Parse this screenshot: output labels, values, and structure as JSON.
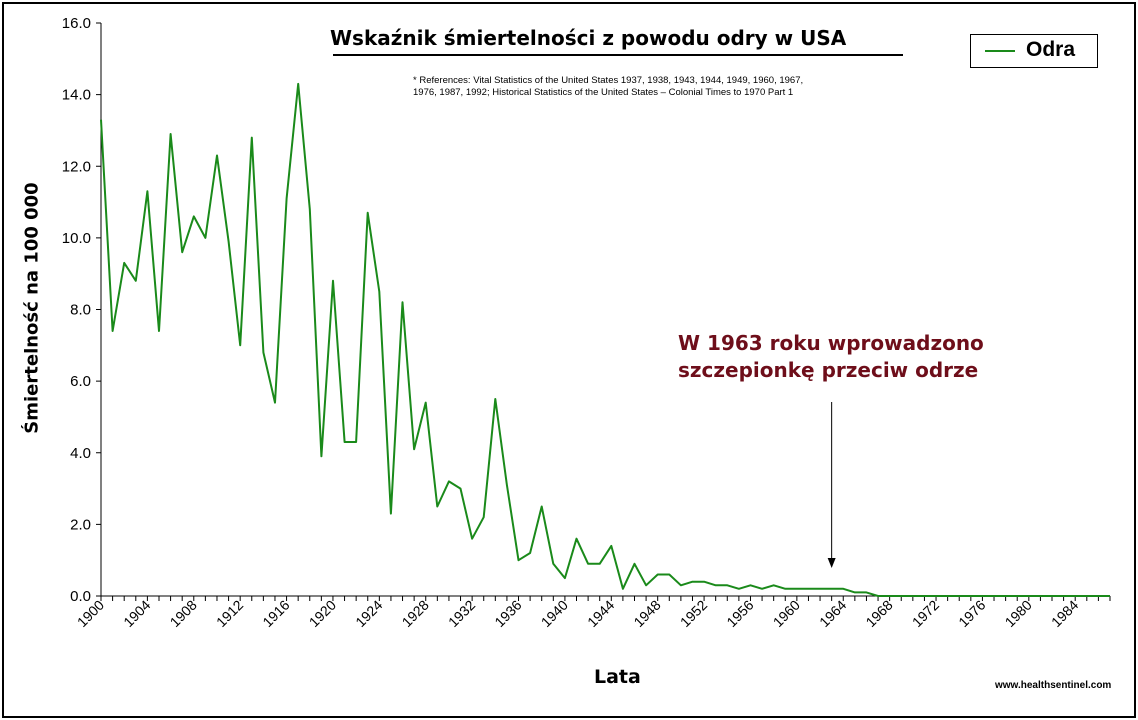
{
  "chart_data": {
    "type": "line",
    "title": "Wskaźnik śmiertelności z powodu odry w USA",
    "references": [
      "* References: Vital Statistics of the United States 1937, 1938, 1943, 1944, 1949, 1960, 1967,",
      "1976, 1987, 1992; Historical Statistics of the United States – Colonial Times to 1970 Part 1"
    ],
    "xlabel": "Lata",
    "ylabel": "Śmiertelność na 100 000",
    "ylim": [
      0,
      16
    ],
    "xlim": [
      1900,
      1987
    ],
    "yticks": [
      "0.0",
      "2.0",
      "4.0",
      "6.0",
      "8.0",
      "10.0",
      "12.0",
      "14.0",
      "16.0"
    ],
    "xticks": [
      "1900",
      "1904",
      "1908",
      "1912",
      "1916",
      "1920",
      "1924",
      "1928",
      "1932",
      "1936",
      "1940",
      "1944",
      "1948",
      "1952",
      "1956",
      "1960",
      "1964",
      "1968",
      "1972",
      "1976",
      "1980",
      "1984"
    ],
    "grid": false,
    "legend_position": "top-right",
    "series": [
      {
        "name": "Odra",
        "color": "#1a8a1a",
        "x": [
          1900,
          1901,
          1902,
          1903,
          1904,
          1905,
          1906,
          1907,
          1908,
          1909,
          1910,
          1911,
          1912,
          1913,
          1914,
          1915,
          1916,
          1917,
          1918,
          1919,
          1920,
          1921,
          1922,
          1923,
          1924,
          1925,
          1926,
          1927,
          1928,
          1929,
          1930,
          1931,
          1932,
          1933,
          1934,
          1935,
          1936,
          1937,
          1938,
          1939,
          1940,
          1941,
          1942,
          1943,
          1944,
          1945,
          1946,
          1947,
          1948,
          1949,
          1950,
          1951,
          1952,
          1953,
          1954,
          1955,
          1956,
          1957,
          1958,
          1959,
          1960,
          1961,
          1962,
          1963,
          1964,
          1965,
          1966,
          1967,
          1968,
          1969,
          1970,
          1971,
          1972,
          1973,
          1974,
          1975,
          1976,
          1977,
          1978,
          1979,
          1980,
          1981,
          1982,
          1983,
          1984,
          1985,
          1986,
          1987
        ],
        "values": [
          13.3,
          7.4,
          9.3,
          8.8,
          11.3,
          7.4,
          12.9,
          9.6,
          10.6,
          10.0,
          12.3,
          9.9,
          7.0,
          12.8,
          6.8,
          5.4,
          11.1,
          14.3,
          10.8,
          3.9,
          8.8,
          4.3,
          4.3,
          10.7,
          8.5,
          2.3,
          8.2,
          4.1,
          5.4,
          2.5,
          3.2,
          3.0,
          1.6,
          2.2,
          5.5,
          3.1,
          1.0,
          1.2,
          2.5,
          0.9,
          0.5,
          1.6,
          0.9,
          0.9,
          1.4,
          0.2,
          0.9,
          0.3,
          0.6,
          0.6,
          0.3,
          0.4,
          0.4,
          0.3,
          0.3,
          0.2,
          0.3,
          0.2,
          0.3,
          0.2,
          0.2,
          0.2,
          0.2,
          0.2,
          0.2,
          0.1,
          0.1,
          0.0,
          0.0,
          0.0,
          0.0,
          0.0,
          0.0,
          0.0,
          0.0,
          0.0,
          0.0,
          0.0,
          0.0,
          0.0,
          0.0,
          0.0,
          0.0,
          0.0,
          0.0,
          0.0,
          0.0,
          0.0
        ]
      }
    ],
    "annotation": {
      "lines": [
        "W 1963 roku wprowadzono",
        "szczepionkę przeciw odrze"
      ],
      "arrow_x": 1963,
      "color": "#6e0e1a"
    }
  },
  "watermark": "www.healthsentinel.com"
}
